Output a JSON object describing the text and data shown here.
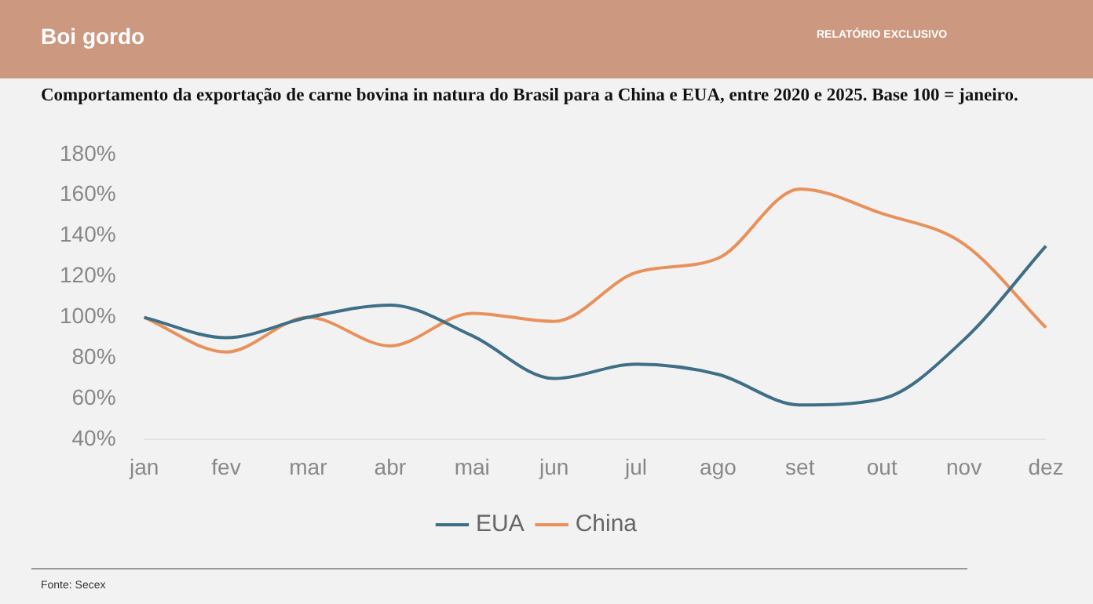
{
  "chart_data": {
    "type": "line",
    "title": "Comportamento da exportação de carne bovina in natura do Brasil para a China e EUA, entre 2020 e 2025. Base 100 = janeiro.",
    "annotations": [
      "Boi gordo",
      "RELATÓRIO EXCLUSIVO",
      "Fonte: Secex"
    ],
    "categories": [
      "jan",
      "fev",
      "mar",
      "abr",
      "mai",
      "jun",
      "jul",
      "ago",
      "set",
      "out",
      "nov",
      "dez"
    ],
    "series": [
      {
        "name": "EUA",
        "color": "#3e6f86",
        "values": [
          100,
          90,
          100,
          106,
          91,
          70,
          77,
          72,
          57,
          60,
          89,
          135
        ]
      },
      {
        "name": "China",
        "color": "#e8915a",
        "values": [
          100,
          83,
          100,
          86,
          102,
          98,
          122,
          129,
          163,
          151,
          136,
          95
        ]
      }
    ],
    "ylim": [
      40,
      180
    ],
    "yticks": [
      {
        "value": 40,
        "label": "40%"
      },
      {
        "value": 60,
        "label": "60%"
      },
      {
        "value": 80,
        "label": "80%"
      },
      {
        "value": 100,
        "label": "100%"
      },
      {
        "value": 120,
        "label": "120%"
      },
      {
        "value": 140,
        "label": "140%"
      },
      {
        "value": 160,
        "label": "160%"
      },
      {
        "value": 180,
        "label": "180%"
      }
    ],
    "grid": false,
    "legend": "bottom",
    "marker": "none",
    "line_style": "solid"
  }
}
